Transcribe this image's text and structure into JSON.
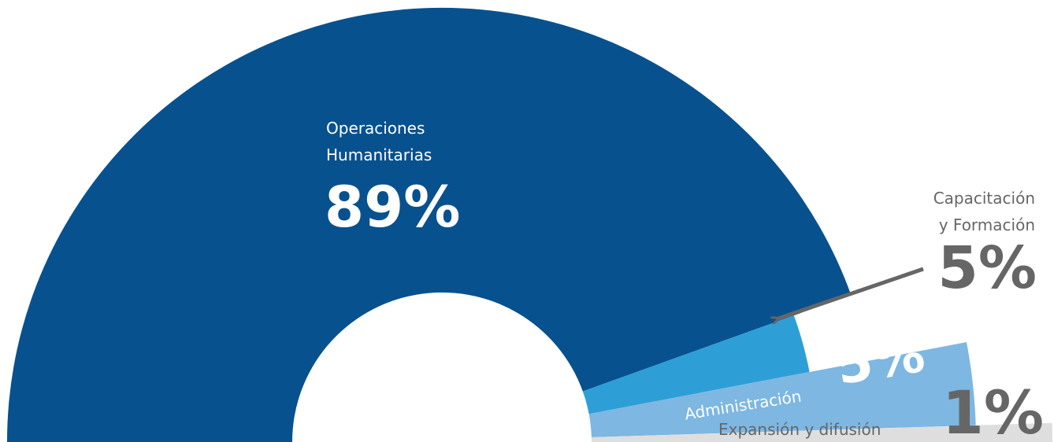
{
  "chart_data": {
    "type": "pie",
    "variant": "half-donut with exploded small slices",
    "categories": [
      "Operaciones Humanitarias",
      "Capacitación y Formación",
      "Administración",
      "Expansión y difusión"
    ],
    "values": [
      89,
      5,
      5,
      1
    ],
    "colors": [
      "#08518f",
      "#2e9fd6",
      "#7db7e2",
      "#dedede"
    ],
    "label_colors": {
      "inside_slice": "#ffffff",
      "outside_slice": "#666666"
    },
    "slices": [
      {
        "key": "operaciones",
        "name_lines": [
          "Operaciones",
          "Humanitarias"
        ],
        "percent_label": "89%",
        "value": 89,
        "color": "#08518f"
      },
      {
        "key": "capacitacion",
        "name_lines": [
          "Capacitación",
          "y Formación"
        ],
        "percent_label": "5%",
        "value": 5,
        "color": "#2e9fd6"
      },
      {
        "key": "administracion",
        "name_lines": [
          "Administración"
        ],
        "percent_label": "5%",
        "value": 5,
        "color": "#7db7e2"
      },
      {
        "key": "expansion",
        "name_lines": [
          "Expansión y difusión"
        ],
        "percent_label": "1%",
        "value": 1,
        "color": "#dedede"
      }
    ],
    "legend": "none",
    "grid": false
  }
}
